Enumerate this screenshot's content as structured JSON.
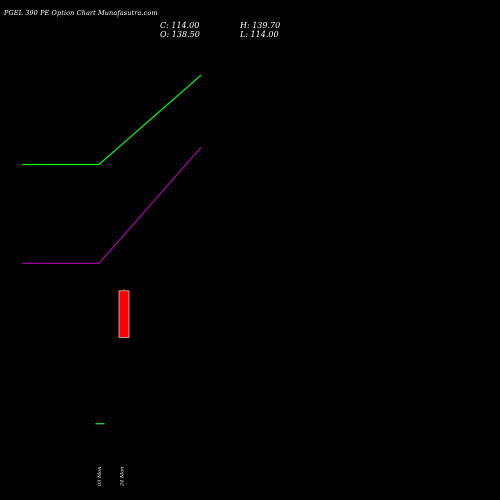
{
  "header": {
    "title": "PGEL 390 PE Option Chart Munafasutra.com",
    "close": "C: 114.00",
    "high": "H: 139.70",
    "open": "O: 138.50",
    "low": "L: 114.00"
  },
  "chart_data": {
    "type": "candlestick",
    "background": "#000000",
    "x_labels": [
      "03 Mon",
      "24 Mon"
    ],
    "y_range": [
      60,
      260
    ],
    "candles": [
      {
        "label": "03 Mon",
        "open": 69,
        "high": 69,
        "low": 69,
        "close": 69,
        "color": "#22c03c"
      },
      {
        "label": "24 Mon",
        "open": 138.5,
        "high": 139.7,
        "low": 114.0,
        "close": 114.0,
        "color": "#ff0000"
      }
    ],
    "series": [
      {
        "color": "#00ff00",
        "x": [
          -3,
          0,
          4
        ],
        "values": [
          205,
          205,
          252
        ]
      },
      {
        "color": "#b000b0",
        "x": [
          -3,
          0,
          4
        ],
        "values": [
          153,
          153,
          214
        ]
      }
    ]
  }
}
